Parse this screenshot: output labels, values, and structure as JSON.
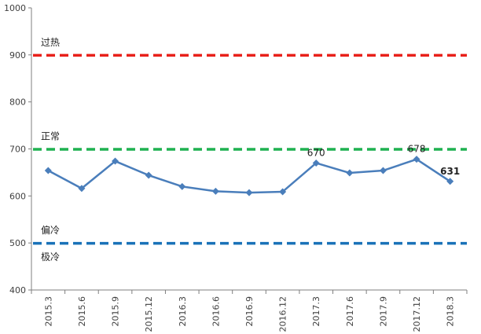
{
  "chart_data": {
    "type": "line",
    "categories": [
      "2015.3",
      "2015.6",
      "2015.9",
      "2015.12",
      "2016.3",
      "2016.6",
      "2016.9",
      "2016.12",
      "2017.3",
      "2017.6",
      "2017.9",
      "2017.12",
      "2018.3"
    ],
    "series": [
      {
        "values": [
          654,
          616,
          674,
          644,
          620,
          610,
          607,
          609,
          670,
          649,
          654,
          678,
          631
        ],
        "color": "#4a7ebb",
        "marker": "diamond"
      }
    ],
    "ylim": [
      400,
      1000
    ],
    "yticks": [
      400,
      500,
      600,
      700,
      800,
      900,
      1000
    ],
    "reference_lines": [
      {
        "value": 900,
        "label": "过热",
        "color": "#e8201a",
        "style": "dashed"
      },
      {
        "value": 700,
        "label": "正常",
        "color": "#1fb150",
        "style": "dashed"
      },
      {
        "value": 500,
        "label": "偏冷",
        "color": "#1a72b8",
        "style": "dashed"
      }
    ],
    "zone_labels": [
      {
        "text": "极冷",
        "value": 470
      }
    ],
    "data_labels": [
      {
        "index": 8,
        "text": "670",
        "bold": false
      },
      {
        "index": 11,
        "text": "678",
        "bold": false
      },
      {
        "index": 12,
        "text": "631",
        "bold": true
      }
    ],
    "grid": false,
    "legend": "none"
  }
}
